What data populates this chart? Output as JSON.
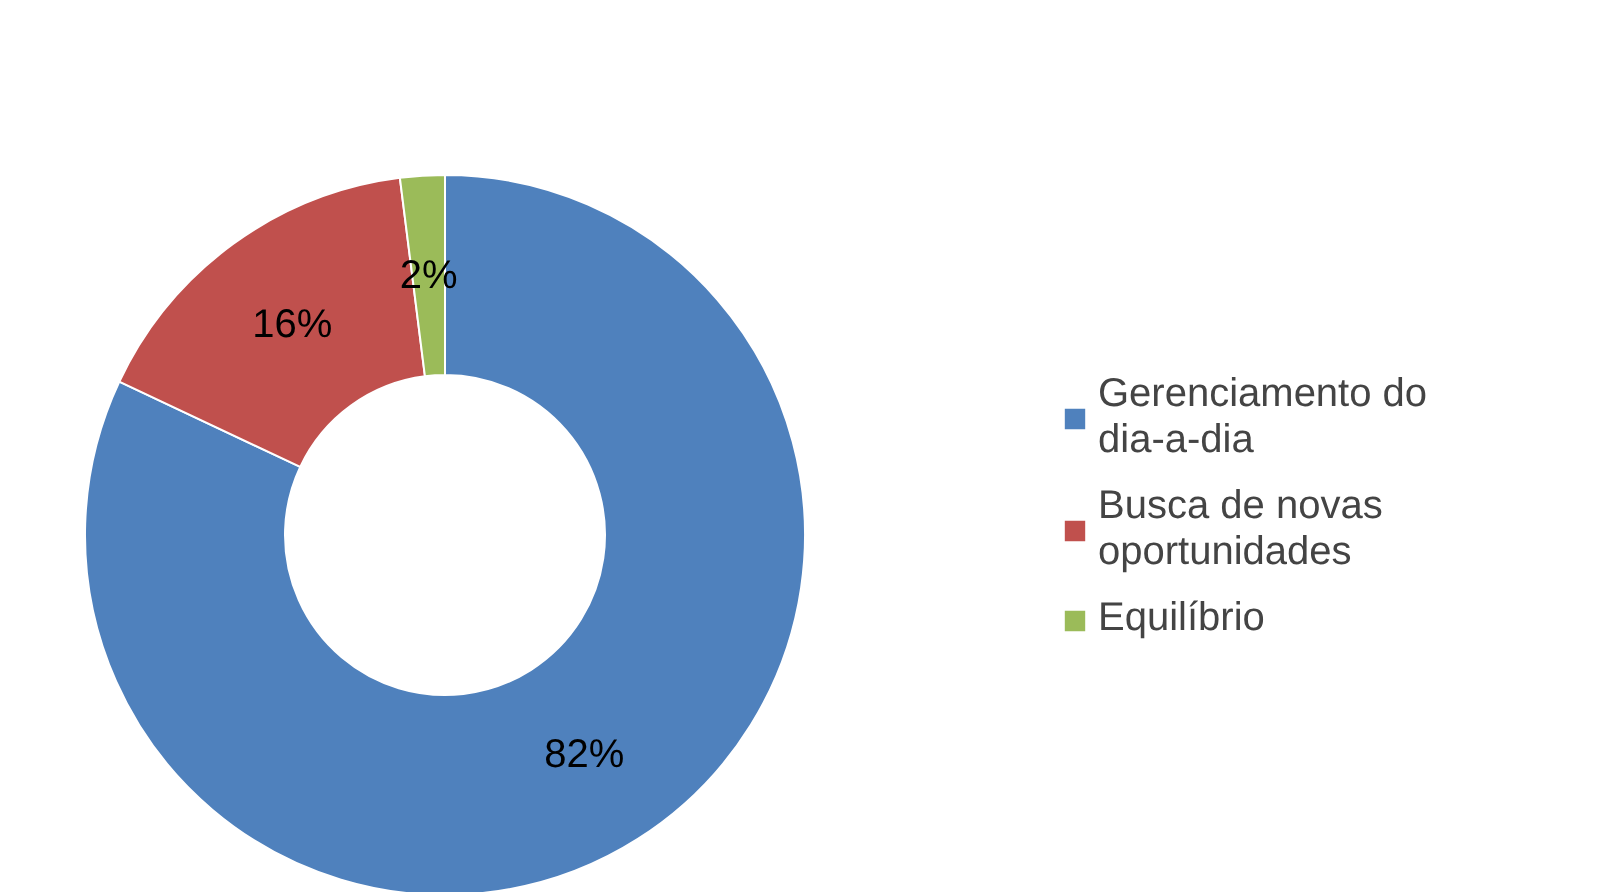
{
  "chart_data": {
    "type": "donut",
    "categories": [
      "Gerenciamento do dia-a-dia",
      "Busca de novas oportunidades",
      "Equilíbrio"
    ],
    "values": [
      82,
      16,
      2
    ],
    "colors": [
      "#4f81bd",
      "#c0504d",
      "#9bbb59"
    ],
    "value_labels": [
      "82%",
      "16%",
      "2%"
    ],
    "legend": "right"
  }
}
